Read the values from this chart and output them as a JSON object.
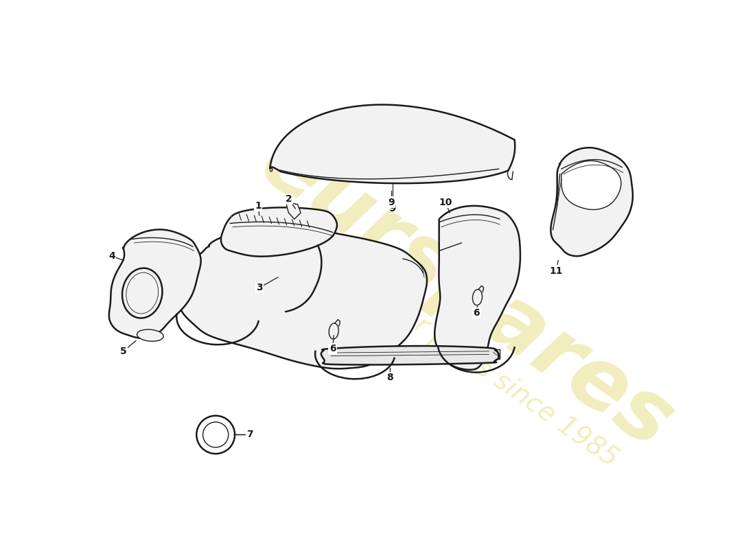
{
  "background_color": "#ffffff",
  "line_color": "#1a1a1a",
  "fill_color": "#f2f2f2",
  "watermark_color": "#f0ebb8",
  "lw_main": 1.8,
  "lw_thin": 1.0,
  "lw_vt": 0.6
}
